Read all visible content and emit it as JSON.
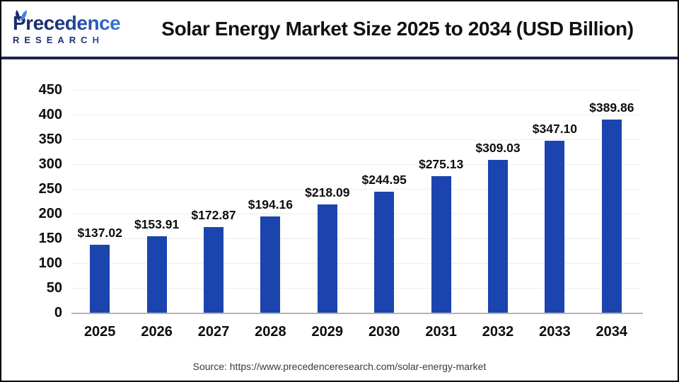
{
  "header": {
    "logo": {
      "line1": "Precedence",
      "line2": "RESEARCH"
    },
    "title": "Solar Energy Market Size 2025 to 2034 (USD Billion)"
  },
  "chart_data": {
    "type": "bar",
    "title": "Solar Energy Market Size 2025 to 2034 (USD Billion)",
    "categories": [
      "2025",
      "2026",
      "2027",
      "2028",
      "2029",
      "2030",
      "2031",
      "2032",
      "2033",
      "2034"
    ],
    "values": [
      137.02,
      153.91,
      172.87,
      194.16,
      218.09,
      244.95,
      275.13,
      309.03,
      347.1,
      389.86
    ],
    "value_labels": [
      "$137.02",
      "$153.91",
      "$172.87",
      "$194.16",
      "$218.09",
      "$244.95",
      "$275.13",
      "$309.03",
      "$347.10",
      "$389.86"
    ],
    "xlabel": "",
    "ylabel": "",
    "ylim": [
      0,
      450
    ],
    "yticks": [
      0,
      50,
      100,
      150,
      200,
      250,
      300,
      350,
      400,
      450
    ],
    "grid": "horizontal",
    "legend": "none",
    "bar_color": "#1b44ae",
    "unit": "USD Billion"
  },
  "footer": {
    "source": "Source: https://www.precedenceresearch.com/solar-energy-market"
  },
  "colors": {
    "bar": "#1b44ae",
    "divider_navy": "#1b2452",
    "logo_navy": "#1b2d6e",
    "logo_blue": "#3f86e0",
    "gridline": "#ececec",
    "axis": "#b3b3b3",
    "text": "#0d0d0d",
    "source_text": "#3b3b3b"
  }
}
